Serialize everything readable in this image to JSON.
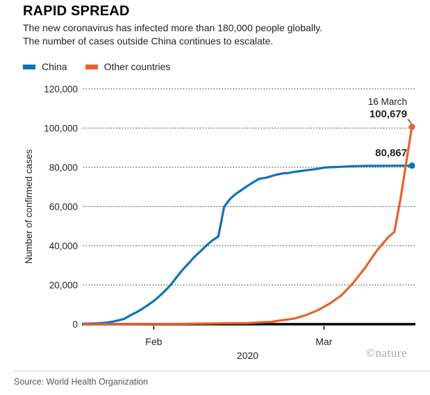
{
  "header": {
    "title": "RAPID SPREAD",
    "subtitle_line1": "The new coronavirus has infected more than 180,000 people globally.",
    "subtitle_line2": "The number of cases outside China continues to escalate."
  },
  "legend": [
    {
      "label": "China",
      "color": "#1072bc"
    },
    {
      "label": "Other countries",
      "color": "#e8612c"
    }
  ],
  "chart_data": {
    "type": "line",
    "title": "RAPID SPREAD",
    "ylabel": "Number of confirmed cases",
    "xlabel": "2020",
    "x_unit": "days since 20 Jan 2020",
    "xlim": [
      0,
      56
    ],
    "ylim": [
      0,
      120000
    ],
    "grid": "dotted horizontal",
    "legend_position": "top-left",
    "yticks": [
      0,
      20000,
      40000,
      60000,
      80000,
      100000,
      120000
    ],
    "ytick_labels": [
      "0",
      "20,000",
      "40,000",
      "60,000",
      "80,000",
      "100,000",
      "120,000"
    ],
    "x_ticks": [
      {
        "label": "Feb",
        "day": 12
      },
      {
        "label": "Mar",
        "day": 41
      }
    ],
    "series": [
      {
        "name": "China",
        "color": "#1072bc",
        "final_value": 80867,
        "points": [
          [
            0,
            278
          ],
          [
            1,
            309
          ],
          [
            2,
            440
          ],
          [
            3,
            571
          ],
          [
            4,
            830
          ],
          [
            5,
            1297
          ],
          [
            6,
            1985
          ],
          [
            7,
            2761
          ],
          [
            8,
            4537
          ],
          [
            9,
            5997
          ],
          [
            10,
            7736
          ],
          [
            11,
            9720
          ],
          [
            12,
            11821
          ],
          [
            13,
            14411
          ],
          [
            14,
            17238
          ],
          [
            15,
            20471
          ],
          [
            16,
            24363
          ],
          [
            17,
            28060
          ],
          [
            18,
            31211
          ],
          [
            19,
            34598
          ],
          [
            20,
            37251
          ],
          [
            21,
            40235
          ],
          [
            22,
            42708
          ],
          [
            23,
            44730
          ],
          [
            24,
            59882
          ],
          [
            25,
            63851
          ],
          [
            26,
            66492
          ],
          [
            27,
            68500
          ],
          [
            28,
            70548
          ],
          [
            29,
            72436
          ],
          [
            30,
            74185
          ],
          [
            31,
            74576
          ],
          [
            32,
            75465
          ],
          [
            33,
            76288
          ],
          [
            34,
            76936
          ],
          [
            35,
            77150
          ],
          [
            36,
            77658
          ],
          [
            37,
            78064
          ],
          [
            38,
            78497
          ],
          [
            39,
            78824
          ],
          [
            40,
            79251
          ],
          [
            41,
            79824
          ],
          [
            42,
            80026
          ],
          [
            43,
            80151
          ],
          [
            44,
            80270
          ],
          [
            45,
            80409
          ],
          [
            46,
            80552
          ],
          [
            47,
            80651
          ],
          [
            48,
            80695
          ],
          [
            49,
            80735
          ],
          [
            50,
            80754
          ],
          [
            51,
            80778
          ],
          [
            52,
            80793
          ],
          [
            53,
            80813
          ],
          [
            54,
            80824
          ],
          [
            55,
            80844
          ],
          [
            56,
            80867
          ]
        ]
      },
      {
        "name": "Other countries",
        "color": "#e8612c",
        "final_value": 100679,
        "points": [
          [
            0,
            4
          ],
          [
            4,
            11
          ],
          [
            8,
            23
          ],
          [
            10,
            82
          ],
          [
            12,
            106
          ],
          [
            16,
            159
          ],
          [
            20,
            307
          ],
          [
            24,
            447
          ],
          [
            28,
            526
          ],
          [
            30,
            924
          ],
          [
            32,
            1200
          ],
          [
            34,
            2069
          ],
          [
            36,
            2918
          ],
          [
            38,
            4691
          ],
          [
            40,
            7169
          ],
          [
            42,
            10566
          ],
          [
            44,
            14768
          ],
          [
            46,
            21110
          ],
          [
            48,
            28673
          ],
          [
            50,
            37371
          ],
          [
            51,
            41000
          ],
          [
            52,
            44500
          ],
          [
            53,
            47000
          ],
          [
            54,
            63000
          ],
          [
            55,
            82000
          ],
          [
            56,
            100679
          ]
        ]
      }
    ],
    "annotations": {
      "date_label": "16 March",
      "other_value_label": "100,679",
      "china_value_label": "80,867"
    }
  },
  "footer": {
    "year_label": "2020",
    "watermark": "©nature",
    "source": "Source: World Health Organization"
  }
}
